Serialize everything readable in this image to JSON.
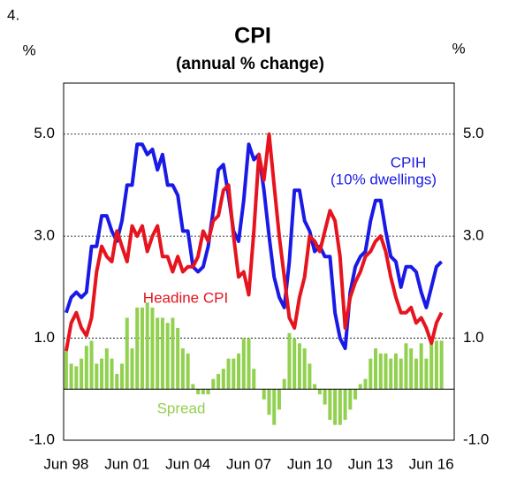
{
  "chart_data": {
    "type": "line-bar",
    "figure_number": "4.",
    "title": "CPI",
    "subtitle": "(annual % change)",
    "ylabel": "%",
    "y2label": "%",
    "annotations": [
      "(10% dwellings)"
    ],
    "categories": [
      "Jun 98",
      null,
      null,
      null,
      null,
      null,
      null,
      null,
      null,
      null,
      null,
      null,
      "Jun 01",
      null,
      null,
      null,
      null,
      null,
      null,
      null,
      null,
      null,
      null,
      null,
      "Jun 04",
      null,
      null,
      null,
      null,
      null,
      null,
      null,
      null,
      null,
      null,
      null,
      "Jun 07",
      null,
      null,
      null,
      null,
      null,
      null,
      null,
      null,
      null,
      null,
      null,
      "Jun 10",
      null,
      null,
      null,
      null,
      null,
      null,
      null,
      null,
      null,
      null,
      null,
      "Jun 13",
      null,
      null,
      null,
      null,
      null,
      null,
      null,
      null,
      null,
      null,
      null,
      "Jun 16",
      null,
      null
    ],
    "series": [
      {
        "name": "CPIH",
        "type": "line",
        "color": "#1a1ae6",
        "values": [
          1.5,
          1.8,
          1.9,
          1.8,
          1.9,
          2.8,
          2.8,
          3.4,
          3.4,
          3.1,
          2.9,
          3.3,
          4.0,
          4.0,
          4.8,
          4.8,
          4.6,
          4.7,
          4.3,
          4.6,
          4.0,
          4.0,
          3.8,
          3.1,
          3.1,
          2.4,
          2.3,
          2.4,
          2.8,
          3.5,
          4.3,
          4.4,
          3.8,
          3.1,
          2.9,
          3.7,
          4.8,
          4.5,
          4.6,
          3.9,
          3.0,
          2.2,
          1.8,
          1.6,
          2.5,
          3.9,
          3.9,
          3.3,
          3.1,
          2.7,
          2.8,
          2.6,
          2.6,
          1.5,
          1.0,
          0.8,
          1.9,
          2.4,
          2.6,
          2.7,
          3.3,
          3.7,
          3.7,
          3.1,
          2.6,
          2.5,
          2.0,
          2.4,
          2.4,
          2.3,
          1.9,
          1.6,
          2.0,
          2.4,
          2.5
        ]
      },
      {
        "name": "Headine CPI",
        "type": "line",
        "color": "#e6141e",
        "values": [
          0.75,
          1.3,
          1.5,
          1.2,
          1.05,
          1.4,
          2.3,
          2.8,
          2.6,
          2.5,
          3.1,
          2.8,
          2.5,
          3.2,
          3.0,
          3.2,
          2.7,
          3.0,
          3.2,
          2.6,
          2.6,
          2.3,
          2.6,
          2.3,
          2.4,
          2.4,
          2.6,
          3.1,
          2.9,
          3.3,
          3.4,
          3.9,
          4.0,
          3.0,
          2.2,
          2.3,
          1.85,
          3.1,
          4.6,
          4.1,
          5.0,
          4.0,
          3.0,
          2.2,
          1.4,
          1.2,
          1.8,
          2.2,
          3.0,
          2.9,
          2.7,
          3.1,
          3.5,
          3.3,
          2.6,
          1.2,
          1.8,
          2.1,
          2.3,
          2.6,
          2.7,
          2.9,
          3.0,
          2.7,
          2.2,
          1.8,
          1.5,
          1.5,
          1.6,
          1.3,
          1.4,
          1.2,
          0.9,
          1.3,
          1.5
        ]
      },
      {
        "name": "Spread",
        "type": "bar",
        "color": "#92d050",
        "values": [
          0.75,
          0.5,
          0.45,
          0.6,
          0.85,
          0.95,
          0.5,
          0.6,
          0.8,
          0.6,
          0.3,
          0.5,
          1.4,
          0.8,
          1.6,
          1.6,
          1.7,
          1.6,
          1.4,
          1.4,
          1.3,
          1.4,
          1.2,
          0.8,
          0.7,
          0.1,
          -0.1,
          -0.1,
          -0.1,
          0.2,
          0.3,
          0.4,
          0.6,
          0.6,
          0.7,
          1.0,
          1.0,
          0.4,
          0.0,
          -0.2,
          -0.5,
          -0.7,
          -0.4,
          0.2,
          1.1,
          1.0,
          0.9,
          0.8,
          0.5,
          0.1,
          -0.1,
          -0.3,
          -0.6,
          -0.7,
          -0.7,
          -0.6,
          -0.4,
          -0.2,
          0.1,
          0.2,
          0.6,
          0.8,
          0.7,
          0.7,
          0.6,
          0.7,
          0.6,
          0.9,
          0.8,
          0.6,
          0.9,
          0.6,
          0.9,
          0.95,
          0.95
        ]
      }
    ],
    "ylim": [
      -1,
      6
    ],
    "yticks": [
      {
        "value": -1,
        "label": "-1.0"
      },
      {
        "value": 1,
        "label": "1.0"
      },
      {
        "value": 3,
        "label": "3.0"
      },
      {
        "value": 5,
        "label": "5.0"
      }
    ],
    "y2lim": [
      -1,
      6
    ],
    "y2ticks": [
      {
        "value": -1,
        "label": "-1.0"
      },
      {
        "value": 1,
        "label": "1.0"
      },
      {
        "value": 3,
        "label": "3.0"
      },
      {
        "value": 5,
        "label": "5.0"
      }
    ],
    "grid": true
  }
}
